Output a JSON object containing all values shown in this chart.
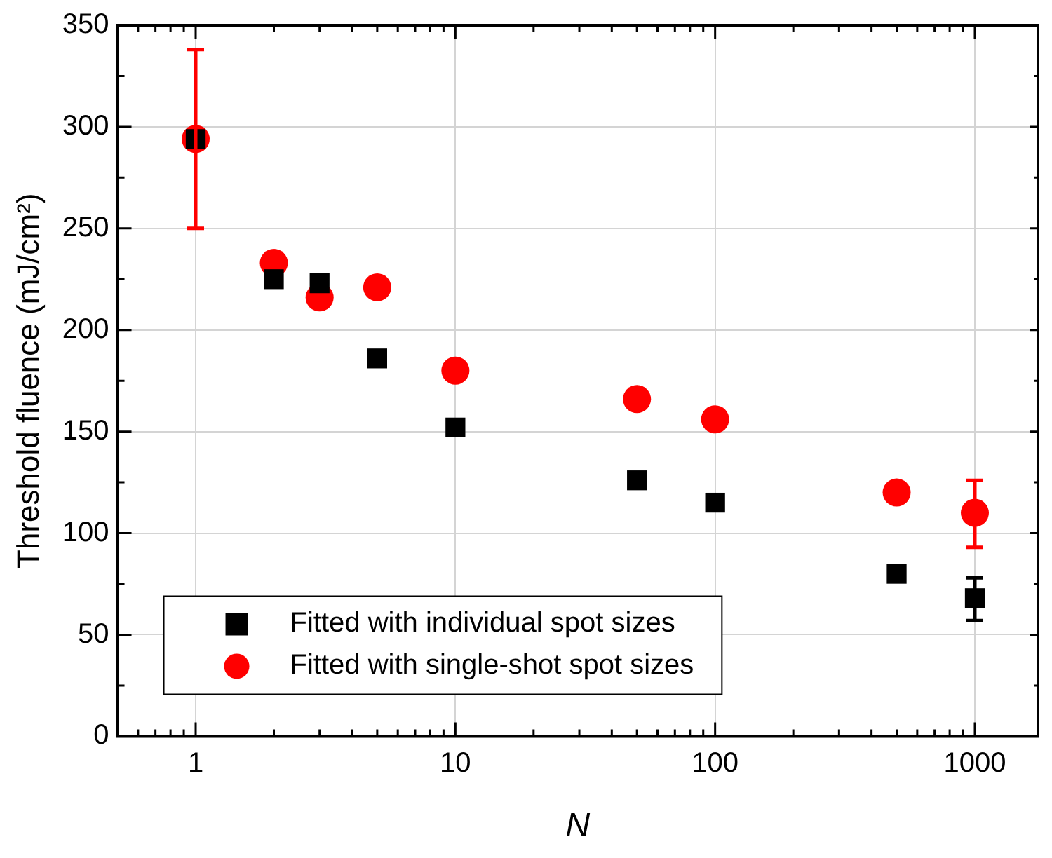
{
  "chart_data": {
    "type": "scatter",
    "xlabel": "N",
    "ylabel": "Threshold fluence (mJ/cm²)",
    "log": "x",
    "xlim": [
      0.5,
      1750
    ],
    "xticks": [
      1,
      10,
      100,
      1000
    ],
    "ylim": [
      0,
      350
    ],
    "yticks": [
      0,
      50,
      100,
      150,
      200,
      250,
      300,
      350
    ],
    "grid": true,
    "legend": "bottom left",
    "x": [
      1,
      2,
      3,
      5,
      10,
      50,
      100,
      500,
      1000
    ],
    "series": [
      {
        "name": "Fitted with individual spot sizes",
        "color": "#000000",
        "marker": "square",
        "values": [
          294,
          225,
          223,
          186,
          152,
          126,
          115,
          80,
          68
        ],
        "errors": [
          null,
          null,
          null,
          null,
          null,
          null,
          null,
          null,
          [
            57,
            78
          ]
        ]
      },
      {
        "name": "Fitted with single-shot spot sizes",
        "color": "#ff0000",
        "marker": "circle",
        "values": [
          294,
          233,
          216,
          221,
          180,
          166,
          156,
          120,
          110
        ],
        "errors": [
          [
            250,
            338
          ],
          null,
          null,
          null,
          null,
          null,
          null,
          null,
          [
            93,
            126
          ]
        ]
      }
    ]
  }
}
